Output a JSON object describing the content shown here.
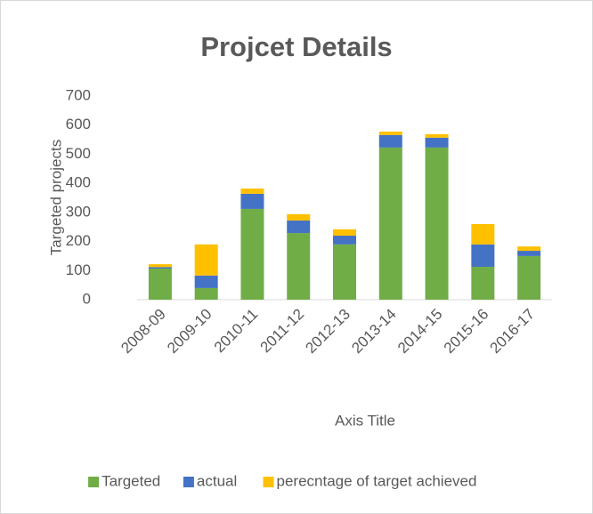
{
  "chart_data": {
    "type": "bar",
    "stacked": true,
    "title": "Projcet Details",
    "x_label": "Axis Title",
    "y_label": "Targeted projects",
    "categories": [
      "2008-09",
      "2009-10",
      "2010-11",
      "2011-12",
      "2012-13",
      "2013-14",
      "2014-15",
      "2015-16",
      "2016-17"
    ],
    "series": [
      {
        "name": "Targeted",
        "color": "#70ad47",
        "values": [
          107,
          40,
          312,
          229,
          190,
          523,
          523,
          113,
          150
        ]
      },
      {
        "name": "actual",
        "color": "#4472c4",
        "values": [
          5,
          43,
          52,
          43,
          30,
          43,
          34,
          77,
          18
        ]
      },
      {
        "name": "perecntage of target achieved",
        "color": "#ffc000",
        "values": [
          10,
          107,
          18,
          22,
          22,
          12,
          12,
          70,
          15
        ]
      }
    ],
    "ylim": [
      0,
      700
    ],
    "yticks": [
      0,
      100,
      200,
      300,
      400,
      500,
      600,
      700
    ],
    "grid": false,
    "legend": "bottom"
  }
}
